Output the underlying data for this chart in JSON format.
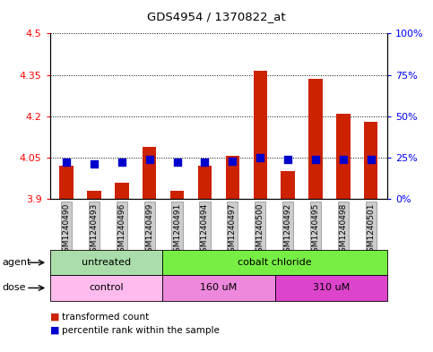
{
  "title": "GDS4954 / 1370822_at",
  "samples": [
    "GSM1240490",
    "GSM1240493",
    "GSM1240496",
    "GSM1240499",
    "GSM1240491",
    "GSM1240494",
    "GSM1240497",
    "GSM1240500",
    "GSM1240492",
    "GSM1240495",
    "GSM1240498",
    "GSM1240501"
  ],
  "transformed_count": [
    4.02,
    3.93,
    3.96,
    4.09,
    3.93,
    4.02,
    4.055,
    4.365,
    4.0,
    4.335,
    4.21,
    4.18
  ],
  "percentile_rank": [
    22,
    21,
    22,
    24,
    22,
    22,
    23,
    25,
    24,
    24,
    24,
    24
  ],
  "bar_bottom": 3.9,
  "ylim": [
    3.9,
    4.5
  ],
  "yticks": [
    3.9,
    4.05,
    4.2,
    4.35,
    4.5
  ],
  "right_ylim": [
    0,
    100
  ],
  "right_yticks": [
    0,
    25,
    50,
    75,
    100
  ],
  "right_yticklabels": [
    "0%",
    "25%",
    "50%",
    "75%",
    "100%"
  ],
  "bar_color": "#cc2200",
  "dot_color": "#0000cc",
  "agent_groups": [
    {
      "label": "untreated",
      "start": 0,
      "end": 4
    },
    {
      "label": "cobalt chloride",
      "start": 4,
      "end": 12
    }
  ],
  "agent_colors": [
    "#aaddaa",
    "#77ee44"
  ],
  "dose_groups": [
    {
      "label": "control",
      "start": 0,
      "end": 4
    },
    {
      "label": "160 uM",
      "start": 4,
      "end": 8
    },
    {
      "label": "310 uM",
      "start": 8,
      "end": 12
    }
  ],
  "dose_colors": [
    "#ffbbee",
    "#ee88dd",
    "#dd44cc"
  ],
  "agent_label": "agent",
  "dose_label": "dose",
  "legend_items": [
    {
      "label": "transformed count",
      "color": "#cc2200"
    },
    {
      "label": "percentile rank within the sample",
      "color": "#0000cc"
    }
  ],
  "grid_color": "black",
  "grid_style": "dotted",
  "bar_width": 0.5,
  "dot_size": 35
}
